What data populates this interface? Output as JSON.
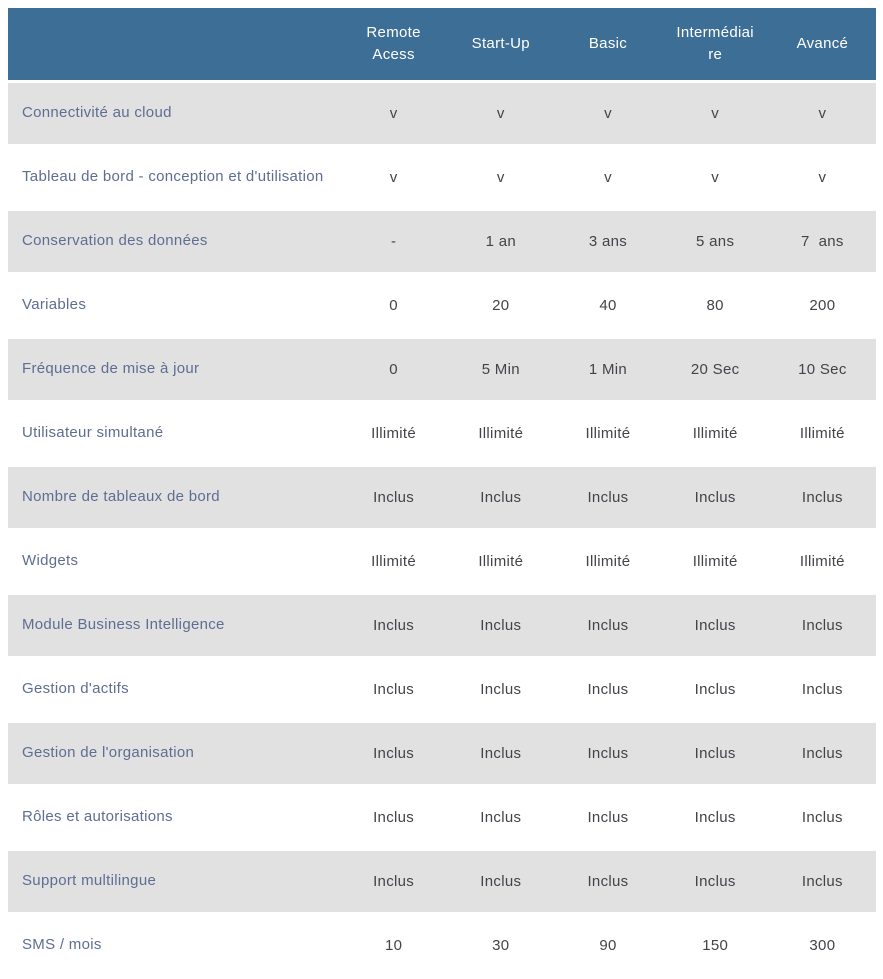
{
  "table": {
    "columns": [
      "Remote Acess",
      "Start-Up",
      "Basic",
      "Intermédiaire",
      "Avancé"
    ],
    "rows": [
      {
        "label": "Connectivité au cloud",
        "values": [
          "v",
          "v",
          "v",
          "v",
          "v"
        ]
      },
      {
        "label": "Tableau de bord - conception et d'utilisation",
        "values": [
          "v",
          "v",
          "v",
          "v",
          "v"
        ]
      },
      {
        "label": "Conservation des données",
        "values": [
          "-",
          "1 an",
          "3 ans",
          "5 ans",
          "7  ans"
        ]
      },
      {
        "label": "Variables",
        "values": [
          "0",
          "20",
          "40",
          "80",
          "200"
        ]
      },
      {
        "label": "Fréquence de mise à jour",
        "values": [
          "0",
          "5 Min",
          "1 Min",
          "20 Sec",
          "10 Sec"
        ]
      },
      {
        "label": "Utilisateur simultané",
        "values": [
          "Illimité",
          "Illimité",
          "Illimité",
          "Illimité",
          "Illimité"
        ]
      },
      {
        "label": "Nombre de tableaux de bord",
        "values": [
          "Inclus",
          "Inclus",
          "Inclus",
          "Inclus",
          "Inclus"
        ]
      },
      {
        "label": "Widgets",
        "values": [
          "Illimité",
          "Illimité",
          "Illimité",
          "Illimité",
          "Illimité"
        ]
      },
      {
        "label": "Module Business Intelligence",
        "values": [
          "Inclus",
          "Inclus",
          "Inclus",
          "Inclus",
          "Inclus"
        ]
      },
      {
        "label": "Gestion d'actifs",
        "values": [
          "Inclus",
          "Inclus",
          "Inclus",
          "Inclus",
          "Inclus"
        ]
      },
      {
        "label": "Gestion de l'organisation",
        "values": [
          "Inclus",
          "Inclus",
          "Inclus",
          "Inclus",
          "Inclus"
        ]
      },
      {
        "label": "Rôles et autorisations",
        "values": [
          "Inclus",
          "Inclus",
          "Inclus",
          "Inclus",
          "Inclus"
        ]
      },
      {
        "label": "Support multilingue",
        "values": [
          "Inclus",
          "Inclus",
          "Inclus",
          "Inclus",
          "Inclus"
        ]
      },
      {
        "label": "SMS / mois",
        "values": [
          "10",
          "30",
          "90",
          "150",
          "300"
        ]
      }
    ],
    "colors": {
      "header_bg": "#3d6e96",
      "header_text": "#ffffff",
      "row_alt_bg": "#e1e1e1",
      "row_bg": "#ffffff",
      "label_text": "#5f6d92",
      "value_text": "#414449"
    }
  }
}
